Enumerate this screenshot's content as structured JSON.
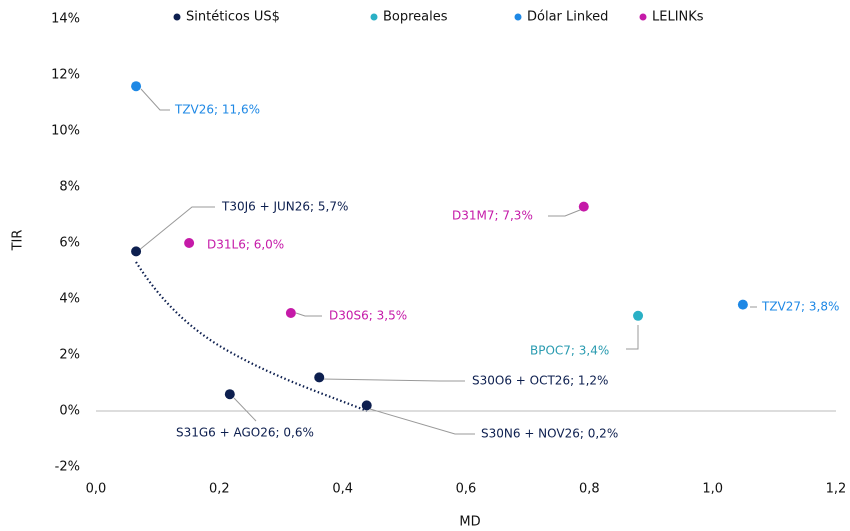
{
  "chart_data": {
    "type": "scatter",
    "xlabel": "MD",
    "ylabel": "TIR",
    "xlim": [
      0,
      1.2
    ],
    "ylim": [
      -2,
      14
    ],
    "xticks": [
      {
        "value": 0,
        "label": "0,0"
      },
      {
        "value": 0.2,
        "label": "0,2"
      },
      {
        "value": 0.4,
        "label": "0,4"
      },
      {
        "value": 0.6,
        "label": "0,6"
      },
      {
        "value": 0.8,
        "label": "0,8"
      },
      {
        "value": 1.0,
        "label": "1,0"
      },
      {
        "value": 1.2,
        "label": "1,2"
      }
    ],
    "yticks": [
      {
        "value": -2,
        "label": "-2%"
      },
      {
        "value": 0,
        "label": "0%"
      },
      {
        "value": 2,
        "label": "2%"
      },
      {
        "value": 4,
        "label": "4%"
      },
      {
        "value": 6,
        "label": "6%"
      },
      {
        "value": 8,
        "label": "8%"
      },
      {
        "value": 10,
        "label": "10%"
      },
      {
        "value": 12,
        "label": "12%"
      },
      {
        "value": 14,
        "label": "14%"
      }
    ],
    "grid": false,
    "legend": "top",
    "series": [
      {
        "name": "Sintéticos US$",
        "color": "#0d1f4f",
        "x": [
          0.065,
          0.217,
          0.362,
          0.439
        ],
        "values": [
          5.7,
          0.6,
          1.2,
          0.2
        ],
        "value_labels": [
          "T30J6 + JUN26; 5,7%",
          "S31G6 + AGO26; 0,6%",
          "S30O6 + OCT26; 1,2%",
          "S30N6 + NOV26; 0,2%"
        ]
      },
      {
        "name": "Bopreales",
        "color": "#2ab0c5",
        "x": [
          0.879
        ],
        "values": [
          3.4
        ],
        "value_labels": [
          "BPOC7; 3,4%"
        ]
      },
      {
        "name": "Dólar Linked",
        "color": "#1e88e5",
        "x": [
          0.065,
          1.049
        ],
        "values": [
          11.6,
          3.8
        ],
        "value_labels": [
          "TZV26; 11,6%",
          "TZV27; 3,8%"
        ]
      },
      {
        "name": "LELINKs",
        "color": "#c51aa8",
        "x": [
          0.151,
          0.316,
          0.791
        ],
        "values": [
          6.0,
          3.5,
          7.3
        ],
        "value_labels": [
          "D31L6; 6,0%",
          "D30S6; 3,5%",
          "D31M7; 7,3%"
        ]
      }
    ]
  }
}
